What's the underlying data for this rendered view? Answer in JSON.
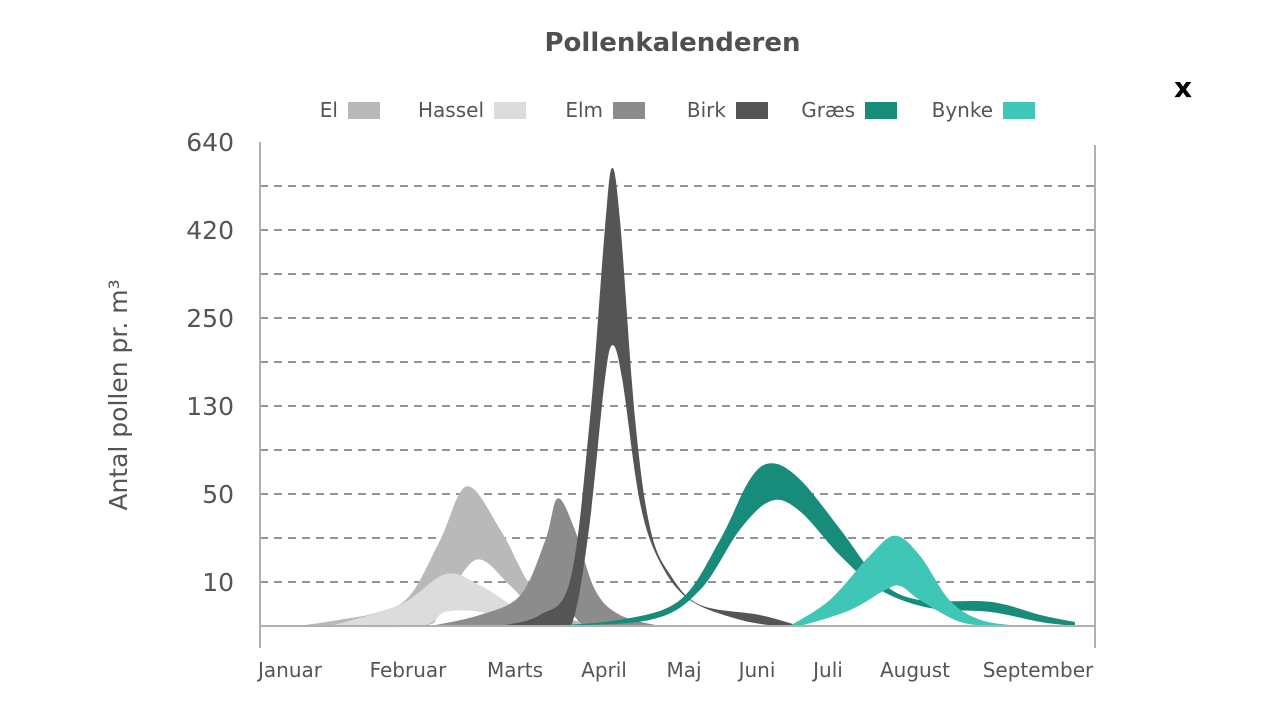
{
  "close_label": "x",
  "chart_data": {
    "type": "area",
    "title": "Pollenkalenderen",
    "ylabel": "Antal pollen pr. m³",
    "xlabel": "",
    "x_unit": "month index (0 = Januar)",
    "categories": [
      "Januar",
      "Februar",
      "Marts",
      "April",
      "Maj",
      "Juni",
      "Juli",
      "August",
      "September"
    ],
    "yticks": [
      10,
      50,
      130,
      250,
      420,
      640
    ],
    "y_scale": "piecewise (equal spacing between tick labels)",
    "ylim": [
      0,
      640
    ],
    "grid": true,
    "legend_position": "top",
    "series": [
      {
        "name": "El",
        "color": "#b9b9b9",
        "upper": [
          [
            0.08,
            0
          ],
          [
            0.42,
            1.4
          ],
          [
            0.76,
            3.2
          ],
          [
            1.02,
            7
          ],
          [
            1.3,
            29
          ],
          [
            1.55,
            57
          ],
          [
            1.86,
            34
          ],
          [
            2.17,
            9.3
          ],
          [
            2.51,
            2.5
          ],
          [
            2.96,
            0
          ]
        ],
        "lower": [
          [
            0.08,
            0
          ],
          [
            1.11,
            0
          ],
          [
            1.3,
            3.6
          ],
          [
            1.63,
            20
          ],
          [
            1.95,
            9.3
          ],
          [
            2.28,
            2.5
          ],
          [
            2.73,
            0
          ]
        ]
      },
      {
        "name": "Hassel",
        "color": "#dcdcdc",
        "upper": [
          [
            0.34,
            0
          ],
          [
            0.93,
            4.8
          ],
          [
            1.35,
            13.6
          ],
          [
            1.67,
            9.3
          ],
          [
            2.06,
            3.6
          ],
          [
            2.51,
            0
          ]
        ],
        "lower": [
          [
            0.34,
            0
          ],
          [
            1.11,
            0
          ],
          [
            1.35,
            3.2
          ],
          [
            1.67,
            3.2
          ],
          [
            2.06,
            0.9
          ],
          [
            2.51,
            0
          ]
        ]
      },
      {
        "name": "Elm",
        "color": "#8c8c8c",
        "upper": [
          [
            1.21,
            0
          ],
          [
            1.67,
            2.5
          ],
          [
            2.06,
            7
          ],
          [
            2.34,
            29
          ],
          [
            2.48,
            48
          ],
          [
            2.67,
            34
          ],
          [
            2.9,
            8.2
          ],
          [
            3.2,
            2.5
          ],
          [
            3.7,
            0
          ]
        ],
        "lower": [
          [
            1.21,
            0
          ],
          [
            1.86,
            0
          ],
          [
            2.28,
            0.9
          ],
          [
            2.62,
            2.5
          ],
          [
            2.84,
            0
          ],
          [
            3.7,
            0
          ]
        ]
      },
      {
        "name": "Birk",
        "color": "#555555",
        "upper": [
          [
            1.86,
            0
          ],
          [
            2.28,
            2.5
          ],
          [
            2.62,
            10.9
          ],
          [
            2.84,
            117
          ],
          [
            3.01,
            420
          ],
          [
            3.1,
            575
          ],
          [
            3.2,
            445
          ],
          [
            3.39,
            117
          ],
          [
            3.58,
            34
          ],
          [
            3.83,
            13.2
          ],
          [
            4.22,
            4.8
          ],
          [
            5.04,
            2.5
          ],
          [
            5.6,
            0
          ]
        ],
        "lower": [
          [
            1.86,
            0
          ],
          [
            2.51,
            0
          ],
          [
            2.67,
            2.5
          ],
          [
            2.84,
            37
          ],
          [
            3.01,
            165
          ],
          [
            3.11,
            213
          ],
          [
            3.23,
            165
          ],
          [
            3.45,
            46
          ],
          [
            3.7,
            19
          ],
          [
            4.08,
            5.9
          ],
          [
            4.77,
            1.4
          ],
          [
            5.32,
            0
          ],
          [
            5.6,
            0
          ]
        ]
      },
      {
        "name": "Græs",
        "color": "#178c7b",
        "upper": [
          [
            2.34,
            0
          ],
          [
            3.2,
            1.4
          ],
          [
            3.95,
            5.9
          ],
          [
            4.49,
            29
          ],
          [
            4.9,
            63
          ],
          [
            5.21,
            78
          ],
          [
            5.61,
            63
          ],
          [
            6.14,
            34
          ],
          [
            6.6,
            10.5
          ],
          [
            7.04,
            5.9
          ],
          [
            7.61,
            5.5
          ],
          [
            8.02,
            2.5
          ],
          [
            8.3,
            0.9
          ]
        ],
        "lower": [
          [
            2.34,
            0
          ],
          [
            3.58,
            1.4
          ],
          [
            4.22,
            8.2
          ],
          [
            4.77,
            34
          ],
          [
            5.21,
            47
          ],
          [
            5.61,
            42
          ],
          [
            6.14,
            22
          ],
          [
            6.6,
            8.2
          ],
          [
            7.12,
            4.1
          ],
          [
            7.61,
            3.2
          ],
          [
            8.02,
            0.9
          ],
          [
            8.3,
            0
          ]
        ]
      },
      {
        "name": "Bynke",
        "color": "#40c6b6",
        "upper": [
          [
            5.46,
            0
          ],
          [
            6.02,
            5.9
          ],
          [
            6.48,
            22
          ],
          [
            6.77,
            31
          ],
          [
            7.04,
            22
          ],
          [
            7.28,
            5.9
          ],
          [
            7.53,
            1.4
          ],
          [
            7.85,
            0
          ]
        ],
        "lower": [
          [
            5.46,
            0
          ],
          [
            5.6,
            0
          ],
          [
            6.25,
            3.6
          ],
          [
            6.66,
            8.2
          ],
          [
            6.83,
            9.1
          ],
          [
            7.04,
            5.9
          ],
          [
            7.37,
            0.9
          ],
          [
            7.69,
            0
          ],
          [
            7.85,
            0
          ]
        ]
      }
    ]
  }
}
